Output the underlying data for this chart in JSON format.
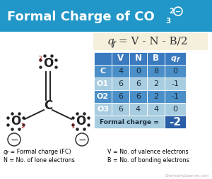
{
  "bg_color": "#2196c8",
  "formula_bg": "#f5f0dc",
  "header_bg": "#3a7abf",
  "row_bg_dark": "#4a8fc8",
  "row_bg_light": "#a8cde0",
  "fc_value_bg": "#2a5fa8",
  "body_bg": "#ffffff",
  "table_headers": [
    "",
    "V",
    "N",
    "B",
    "qf"
  ],
  "table_rows": [
    [
      "C",
      "4",
      "0",
      "8",
      "0"
    ],
    [
      "O1",
      "6",
      "6",
      "2",
      "-1"
    ],
    [
      "O2",
      "6",
      "6",
      "2",
      "-1"
    ],
    [
      "O3",
      "6",
      "4",
      "4",
      "0"
    ]
  ],
  "formal_charge_label": "Formal charge =",
  "formal_charge_value": "-2",
  "legend_left1": "qf = Formal charge (FC)",
  "legend_left2": "N = No. of lone electrons",
  "legend_right1": "V = No. of valence electrons",
  "legend_right2": "B = No. of bonding electrons",
  "watermark": "ChemistryLearner.com"
}
